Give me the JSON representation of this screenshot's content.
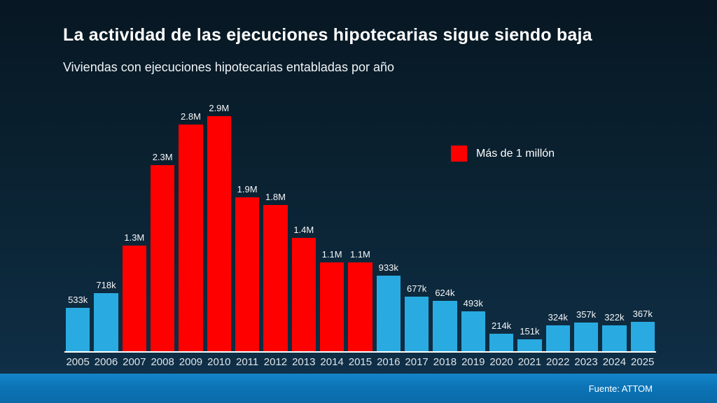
{
  "title": "La actividad de las ejecuciones hipotecarias sigue siendo baja",
  "subtitle": "Viviendas con ejecuciones hipotecarias entabladas por año",
  "legend": {
    "label": "Más de 1 millón",
    "color": "#ff0000"
  },
  "source": "Fuente: ATTOM",
  "colors": {
    "background_top": "#071723",
    "background_bottom": "#113450",
    "bar_below_threshold": "#29abe2",
    "bar_above_threshold": "#ff0000",
    "footer_bar": "#0c74b6",
    "axis_line": "#ffffff",
    "text": "#ffffff"
  },
  "chart_data": {
    "type": "bar",
    "title": "La actividad de las ejecuciones hipotecarias sigue siendo baja",
    "subtitle": "Viviendas con ejecuciones hipotecarias entabladas por año",
    "xlabel": "",
    "ylabel": "",
    "grid": false,
    "legend_position": "upper right",
    "legend": [
      {
        "label": "Más de 1 millón",
        "color": "#ff0000"
      }
    ],
    "categories": [
      "2005",
      "2006",
      "2007",
      "2008",
      "2009",
      "2010",
      "2011",
      "2012",
      "2013",
      "2014",
      "2015",
      "2016",
      "2017",
      "2018",
      "2019",
      "2020",
      "2021",
      "2022",
      "2023",
      "2024",
      "2025"
    ],
    "values": [
      533000,
      718000,
      1300000,
      2300000,
      2800000,
      2900000,
      1900000,
      1800000,
      1400000,
      1100000,
      1100000,
      933000,
      677000,
      624000,
      493000,
      214000,
      151000,
      324000,
      357000,
      322000,
      367000
    ],
    "value_labels": [
      "533k",
      "718k",
      "1.3M",
      "2.3M",
      "2.8M",
      "2.9M",
      "1.9M",
      "1.8M",
      "1.4M",
      "1.1M",
      "1.1M",
      "933k",
      "677k",
      "624k",
      "493k",
      "214k",
      "151k",
      "324k",
      "357k",
      "322k",
      "367k"
    ],
    "threshold": 1000000,
    "series_colors": {
      "above_threshold": "#ff0000",
      "below_threshold": "#29abe2"
    },
    "ylim": [
      0,
      2900000
    ]
  }
}
